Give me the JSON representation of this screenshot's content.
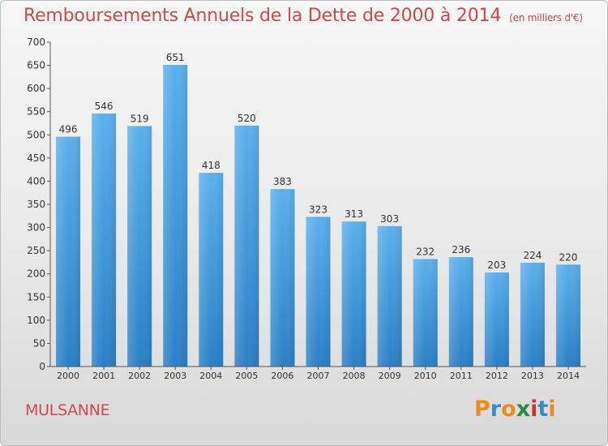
{
  "title": {
    "main": "Remboursements Annuels de la Dette de 2000 à 2014",
    "sub": "(en milliers d'€)"
  },
  "location": "MULSANNE",
  "logo": {
    "text": "Proxiti",
    "letters": [
      "P",
      "r",
      "o",
      "x",
      "i",
      "t",
      "i"
    ],
    "colors": [
      "#f08a1c",
      "#2f8fd0",
      "#f08a1c",
      "#2a8a3e",
      "#d4342a",
      "#2f8fd0",
      "#f08a1c"
    ]
  },
  "colors": {
    "title": "#cc4a4a",
    "bar_top": "#5ab0ec",
    "bar_bottom": "#2a7fc6",
    "axis": "#555555"
  },
  "chart_data": {
    "type": "bar",
    "categories": [
      "2000",
      "2001",
      "2002",
      "2003",
      "2004",
      "2005",
      "2006",
      "2007",
      "2008",
      "2009",
      "2010",
      "2011",
      "2012",
      "2013",
      "2014"
    ],
    "values": [
      496,
      546,
      519,
      651,
      418,
      520,
      383,
      323,
      313,
      303,
      232,
      236,
      203,
      224,
      220
    ],
    "ylim": [
      0,
      700
    ],
    "yticks": [
      0,
      50,
      100,
      150,
      200,
      250,
      300,
      350,
      400,
      450,
      500,
      550,
      600,
      650,
      700
    ],
    "grid": false,
    "data_labels": true
  }
}
